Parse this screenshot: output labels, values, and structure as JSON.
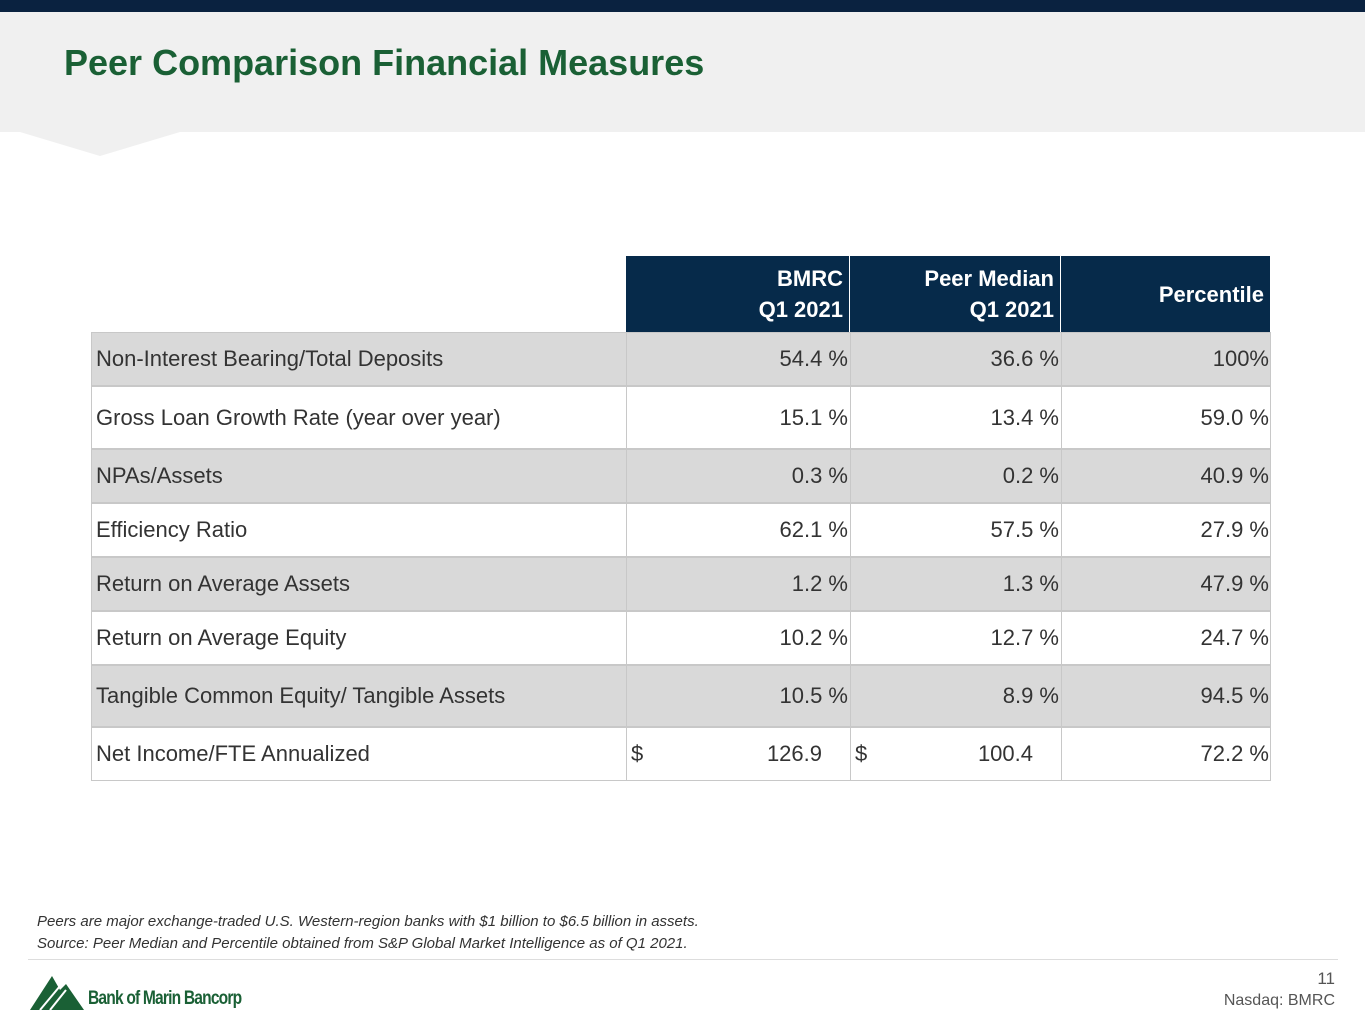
{
  "header": {
    "title": "Peer Comparison Financial Measures"
  },
  "table": {
    "columns": [
      [
        "BMRC",
        "Q1 2021"
      ],
      [
        "Peer Median",
        "Q1 2021"
      ],
      [
        "Percentile"
      ]
    ],
    "rows": [
      [
        "Non-Interest Bearing/Total Deposits",
        "54.4 %",
        "36.6 %",
        "100%"
      ],
      [
        "Gross Loan Growth Rate (year over year)",
        "15.1 %",
        "13.4 %",
        "59.0 %"
      ],
      [
        "NPAs/Assets",
        "0.3 %",
        "0.2 %",
        "40.9 %"
      ],
      [
        "Efficiency Ratio",
        "62.1 %",
        "57.5 %",
        "27.9 %"
      ],
      [
        "Return on Average Assets",
        "1.2 %",
        "1.3 %",
        "47.9 %"
      ],
      [
        "Return on Average Equity",
        "10.2 %",
        "12.7 %",
        "24.7 %"
      ],
      [
        "Tangible Common Equity/ Tangible Assets",
        "10.5 %",
        "8.9 %",
        "94.5 %"
      ],
      [
        "Net Income/FTE Annualized",
        {
          "symbol": "$",
          "amount": "126.9"
        },
        {
          "symbol": "$",
          "amount": "100.4"
        },
        "72.2 %"
      ]
    ]
  },
  "footnotes": [
    "Peers are major exchange-traded U.S. Western-region banks with $1 billion to $6.5 billion in assets.",
    "Source: Peer Median and Percentile obtained from S&P Global Market Intelligence as of Q1 2021."
  ],
  "footer": {
    "logo_text": "Bank of Marin Bancorp",
    "page_number": "11",
    "ticker": "Nasdaq: BMRC"
  }
}
